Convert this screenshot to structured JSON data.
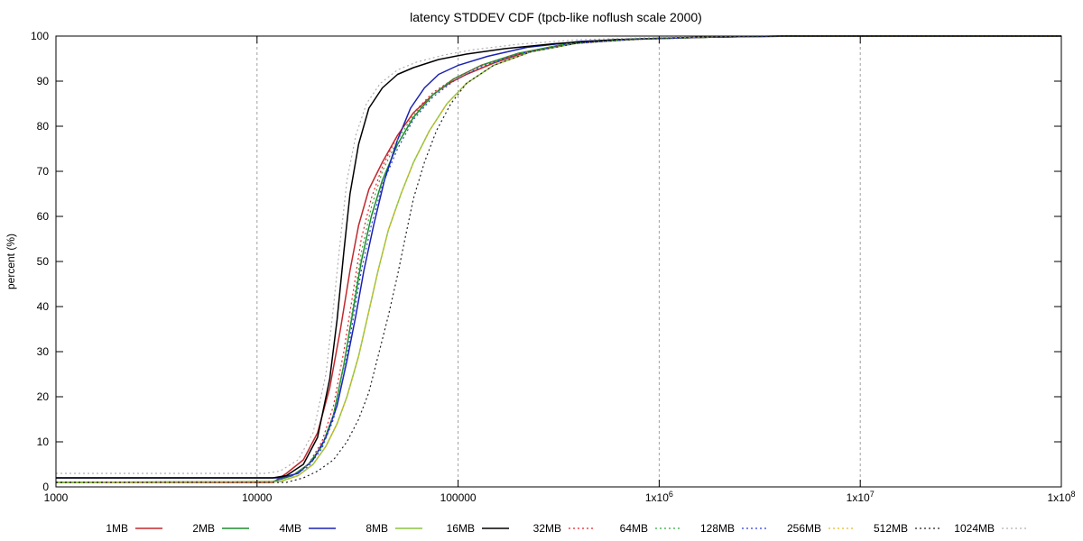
{
  "chart_data": {
    "type": "line",
    "title": "latency STDDEV CDF (tpcb-like noflush scale 2000)",
    "xlabel": "",
    "ylabel": "percent (%)",
    "x_scale": "log",
    "xlim": [
      1000,
      100000000
    ],
    "ylim": [
      0,
      100
    ],
    "x_ticks": [
      1000,
      10000,
      100000,
      1000000,
      10000000,
      100000000
    ],
    "x_tick_labels": [
      "1000",
      "10000",
      "100000",
      "1x10^6",
      "1x10^7",
      "1x10^8"
    ],
    "y_ticks": [
      0,
      10,
      20,
      30,
      40,
      50,
      60,
      70,
      80,
      90,
      100
    ],
    "y_tick_labels": [
      "0",
      "10",
      "20",
      "30",
      "40",
      "50",
      "60",
      "70",
      "80",
      "90",
      "100"
    ],
    "grid": "vertical dashed at x ticks",
    "legend_position": "bottom",
    "series": [
      {
        "name": "1MB",
        "color": "#c0282d",
        "style": "solid",
        "points": [
          [
            1000,
            1
          ],
          [
            12000,
            1
          ],
          [
            14000,
            3
          ],
          [
            17000,
            6
          ],
          [
            20000,
            12
          ],
          [
            23000,
            22
          ],
          [
            26000,
            35
          ],
          [
            29000,
            48
          ],
          [
            32000,
            58
          ],
          [
            36000,
            66
          ],
          [
            42000,
            72
          ],
          [
            50000,
            78
          ],
          [
            60000,
            83
          ],
          [
            75000,
            87
          ],
          [
            90000,
            89.5
          ],
          [
            110000,
            91.5
          ],
          [
            150000,
            94
          ],
          [
            220000,
            96.5
          ],
          [
            350000,
            98.3
          ],
          [
            600000,
            99.2
          ],
          [
            1500000,
            99.7
          ],
          [
            4000000,
            100
          ],
          [
            100000000,
            100
          ]
        ]
      },
      {
        "name": "2MB",
        "color": "#1f8a2e",
        "style": "solid",
        "points": [
          [
            1000,
            1
          ],
          [
            12000,
            1.2
          ],
          [
            15000,
            2.5
          ],
          [
            18000,
            5
          ],
          [
            21000,
            9
          ],
          [
            24000,
            16
          ],
          [
            27000,
            27
          ],
          [
            30000,
            39
          ],
          [
            33000,
            50
          ],
          [
            37000,
            60
          ],
          [
            42000,
            68
          ],
          [
            50000,
            76
          ],
          [
            60000,
            82
          ],
          [
            75000,
            87
          ],
          [
            95000,
            90.5
          ],
          [
            130000,
            93.5
          ],
          [
            200000,
            96.2
          ],
          [
            350000,
            98.3
          ],
          [
            700000,
            99.3
          ],
          [
            2000000,
            99.8
          ],
          [
            5000000,
            100
          ],
          [
            100000000,
            100
          ]
        ]
      },
      {
        "name": "4MB",
        "color": "#1a22b0",
        "style": "solid",
        "points": [
          [
            1000,
            2
          ],
          [
            13000,
            2
          ],
          [
            16000,
            3
          ],
          [
            19000,
            6
          ],
          [
            22000,
            11
          ],
          [
            25000,
            18
          ],
          [
            28000,
            28
          ],
          [
            31000,
            38
          ],
          [
            34000,
            48
          ],
          [
            38000,
            58
          ],
          [
            43000,
            68
          ],
          [
            50000,
            77
          ],
          [
            58000,
            84
          ],
          [
            68000,
            88.5
          ],
          [
            80000,
            91.5
          ],
          [
            100000,
            93.5
          ],
          [
            140000,
            95.5
          ],
          [
            220000,
            97.5
          ],
          [
            400000,
            98.8
          ],
          [
            800000,
            99.4
          ],
          [
            2000000,
            99.8
          ],
          [
            5000000,
            100
          ],
          [
            100000000,
            100
          ]
        ]
      },
      {
        "name": "8MB",
        "color": "#8ac43f",
        "style": "solid",
        "points": [
          [
            1000,
            1
          ],
          [
            13000,
            1.2
          ],
          [
            16000,
            2.5
          ],
          [
            19000,
            5
          ],
          [
            22000,
            9
          ],
          [
            25000,
            14
          ],
          [
            28000,
            20
          ],
          [
            32000,
            29
          ],
          [
            36000,
            39
          ],
          [
            40000,
            48
          ],
          [
            45000,
            57
          ],
          [
            52000,
            65
          ],
          [
            60000,
            72
          ],
          [
            72000,
            79
          ],
          [
            88000,
            85
          ],
          [
            110000,
            89.5
          ],
          [
            150000,
            93.5
          ],
          [
            230000,
            96.5
          ],
          [
            400000,
            98.5
          ],
          [
            800000,
            99.3
          ],
          [
            2000000,
            99.8
          ],
          [
            5000000,
            100
          ],
          [
            100000000,
            100
          ]
        ]
      },
      {
        "name": "16MB",
        "color": "#000000",
        "style": "solid",
        "points": [
          [
            1000,
            2
          ],
          [
            12000,
            2
          ],
          [
            14000,
            2.5
          ],
          [
            17000,
            5
          ],
          [
            20000,
            11
          ],
          [
            23000,
            24
          ],
          [
            25000,
            37
          ],
          [
            27000,
            52
          ],
          [
            29000,
            65
          ],
          [
            32000,
            76
          ],
          [
            36000,
            84
          ],
          [
            42000,
            88.5
          ],
          [
            50000,
            91.5
          ],
          [
            60000,
            93
          ],
          [
            80000,
            94.8
          ],
          [
            110000,
            96
          ],
          [
            170000,
            97.2
          ],
          [
            300000,
            98.3
          ],
          [
            600000,
            99.2
          ],
          [
            1500000,
            99.7
          ],
          [
            4000000,
            100
          ],
          [
            100000000,
            100
          ]
        ]
      },
      {
        "name": "32MB",
        "color": "#e8202a",
        "style": "dotted",
        "points": [
          [
            1000,
            1
          ],
          [
            12000,
            1.2
          ],
          [
            15000,
            2.5
          ],
          [
            18000,
            5
          ],
          [
            21000,
            10
          ],
          [
            24000,
            18
          ],
          [
            27000,
            30
          ],
          [
            30000,
            43
          ],
          [
            33000,
            55
          ],
          [
            37000,
            64
          ],
          [
            42000,
            71
          ],
          [
            50000,
            78
          ],
          [
            60000,
            83
          ],
          [
            75000,
            87.5
          ],
          [
            95000,
            90.5
          ],
          [
            130000,
            93.5
          ],
          [
            200000,
            96.2
          ],
          [
            350000,
            98.2
          ],
          [
            700000,
            99.2
          ],
          [
            2000000,
            99.8
          ],
          [
            5000000,
            100
          ],
          [
            100000000,
            100
          ]
        ]
      },
      {
        "name": "64MB",
        "color": "#2ea83a",
        "style": "dotted",
        "points": [
          [
            1000,
            1
          ],
          [
            12000,
            1.2
          ],
          [
            15000,
            2.5
          ],
          [
            18000,
            5
          ],
          [
            21000,
            9
          ],
          [
            24000,
            16
          ],
          [
            27000,
            27
          ],
          [
            30000,
            40
          ],
          [
            33000,
            52
          ],
          [
            37000,
            62
          ],
          [
            42000,
            70
          ],
          [
            50000,
            77
          ],
          [
            60000,
            82.5
          ],
          [
            75000,
            87
          ],
          [
            95000,
            90.5
          ],
          [
            130000,
            93.5
          ],
          [
            200000,
            96.2
          ],
          [
            350000,
            98.3
          ],
          [
            700000,
            99.3
          ],
          [
            2000000,
            99.8
          ],
          [
            5000000,
            100
          ],
          [
            100000000,
            100
          ]
        ]
      },
      {
        "name": "128MB",
        "color": "#2a3be0",
        "style": "dotted",
        "points": [
          [
            1000,
            1
          ],
          [
            12000,
            1.2
          ],
          [
            15000,
            2.5
          ],
          [
            18000,
            4.5
          ],
          [
            21000,
            8.5
          ],
          [
            24000,
            15
          ],
          [
            27000,
            25
          ],
          [
            30000,
            37
          ],
          [
            33000,
            48
          ],
          [
            37000,
            58
          ],
          [
            42000,
            67
          ],
          [
            50000,
            75
          ],
          [
            60000,
            81.5
          ],
          [
            75000,
            86.5
          ],
          [
            95000,
            90
          ],
          [
            130000,
            93.2
          ],
          [
            200000,
            96
          ],
          [
            350000,
            98.2
          ],
          [
            700000,
            99.2
          ],
          [
            2000000,
            99.8
          ],
          [
            5000000,
            100
          ],
          [
            100000000,
            100
          ]
        ]
      },
      {
        "name": "256MB",
        "color": "#e8b820",
        "style": "dotted",
        "points": [
          [
            1000,
            1
          ],
          [
            13000,
            1.2
          ],
          [
            16000,
            2.5
          ],
          [
            19000,
            5
          ],
          [
            22000,
            9
          ],
          [
            25000,
            14
          ],
          [
            28000,
            20
          ],
          [
            32000,
            29
          ],
          [
            36000,
            39
          ],
          [
            40000,
            48
          ],
          [
            45000,
            57
          ],
          [
            52000,
            65
          ],
          [
            60000,
            72
          ],
          [
            72000,
            79
          ],
          [
            88000,
            85
          ],
          [
            110000,
            89.5
          ],
          [
            150000,
            93.5
          ],
          [
            230000,
            96.5
          ],
          [
            400000,
            98.5
          ],
          [
            800000,
            99.3
          ],
          [
            2000000,
            99.8
          ],
          [
            5000000,
            100
          ],
          [
            100000000,
            100
          ]
        ]
      },
      {
        "name": "512MB",
        "color": "#222222",
        "style": "dotted",
        "points": [
          [
            1000,
            1
          ],
          [
            14000,
            1
          ],
          [
            17000,
            2
          ],
          [
            20000,
            3.5
          ],
          [
            24000,
            6
          ],
          [
            28000,
            10
          ],
          [
            32000,
            15
          ],
          [
            36000,
            21
          ],
          [
            40000,
            29
          ],
          [
            45000,
            38
          ],
          [
            50000,
            47
          ],
          [
            55000,
            56
          ],
          [
            60000,
            64
          ],
          [
            68000,
            72
          ],
          [
            78000,
            79
          ],
          [
            92000,
            85
          ],
          [
            110000,
            89.5
          ],
          [
            150000,
            93.5
          ],
          [
            230000,
            96.5
          ],
          [
            400000,
            98.5
          ],
          [
            800000,
            99.3
          ],
          [
            2000000,
            99.8
          ],
          [
            5000000,
            100
          ],
          [
            100000000,
            100
          ]
        ]
      },
      {
        "name": "1024MB",
        "color": "#b0b0b0",
        "style": "dotted",
        "points": [
          [
            1000,
            3
          ],
          [
            11000,
            3
          ],
          [
            13000,
            3.5
          ],
          [
            16000,
            6
          ],
          [
            19000,
            12
          ],
          [
            22000,
            25
          ],
          [
            24000,
            40
          ],
          [
            26000,
            55
          ],
          [
            28000,
            68
          ],
          [
            31000,
            78
          ],
          [
            35000,
            85
          ],
          [
            41000,
            89.5
          ],
          [
            50000,
            92.5
          ],
          [
            62000,
            94.2
          ],
          [
            85000,
            95.8
          ],
          [
            120000,
            97
          ],
          [
            200000,
            98.2
          ],
          [
            400000,
            99.2
          ],
          [
            1000000,
            99.7
          ],
          [
            3000000,
            100
          ],
          [
            100000000,
            100
          ]
        ]
      }
    ]
  }
}
